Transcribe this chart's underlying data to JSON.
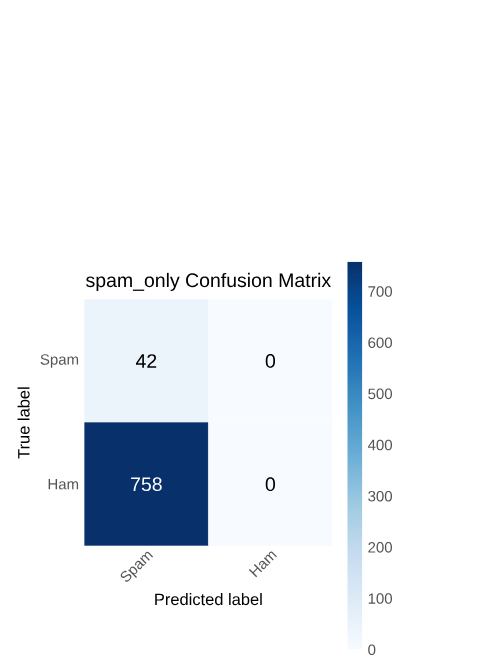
{
  "chart_data": {
    "type": "heatmap",
    "title": "spam_only Confusion Matrix",
    "xlabel": "Predicted label",
    "ylabel": "True label",
    "categories": [
      "Spam",
      "Ham"
    ],
    "y_categories": [
      "Spam",
      "Ham"
    ],
    "cells": [
      [
        42,
        0
      ],
      [
        758,
        0
      ]
    ],
    "data_labels": true,
    "clim": [
      0,
      758
    ],
    "cticks": [
      0,
      100,
      200,
      300,
      400,
      500,
      600,
      700
    ]
  }
}
